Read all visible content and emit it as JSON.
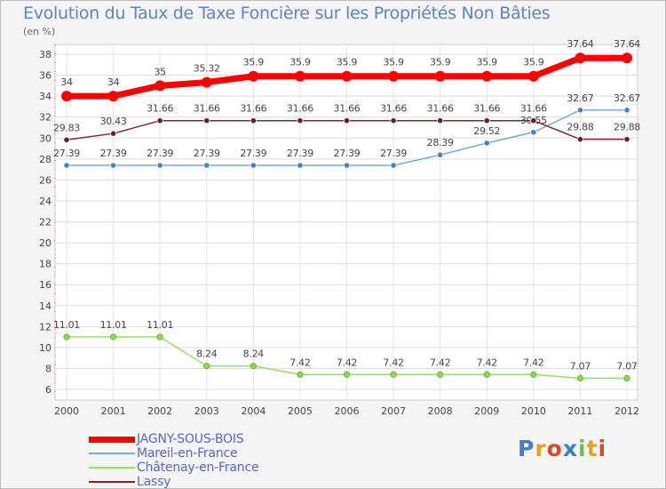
{
  "chart_data": {
    "type": "line",
    "title": "Evolution du Taux de Taxe Foncière sur les Propriétés Non Bâties",
    "ylabel": "(en %)",
    "xlabel": "",
    "categories": [
      "2000",
      "2001",
      "2002",
      "2003",
      "2004",
      "2005",
      "2006",
      "2007",
      "2008",
      "2009",
      "2010",
      "2011",
      "2012"
    ],
    "ylim": [
      6,
      38
    ],
    "yticks": [
      "6",
      "8",
      "10",
      "12",
      "14",
      "16",
      "18",
      "20",
      "22",
      "24",
      "26",
      "28",
      "30",
      "32",
      "34",
      "36",
      "38"
    ],
    "series": [
      {
        "name": "JAGNY-SOUS-BOIS",
        "color": "#ff0000",
        "values": [
          34,
          34,
          35,
          35.32,
          35.9,
          35.9,
          35.9,
          35.9,
          35.9,
          35.9,
          35.9,
          37.64,
          37.64
        ],
        "labels": [
          "34",
          "34",
          "35",
          "35.32",
          "35.9",
          "35.9",
          "35.9",
          "35.9",
          "35.9",
          "35.9",
          "35.9",
          "37.64",
          "37.64"
        ]
      },
      {
        "name": "Mareil-en-France",
        "color": "#7ba7d9",
        "values": [
          27.39,
          27.39,
          27.39,
          27.39,
          27.39,
          27.39,
          27.39,
          27.39,
          28.39,
          29.52,
          30.55,
          32.67,
          32.67
        ],
        "labels": [
          "27.39",
          "27.39",
          "27.39",
          "27.39",
          "27.39",
          "27.39",
          "27.39",
          "27.39",
          "28.39",
          "29.52",
          "30.55",
          "32.67",
          "32.67"
        ]
      },
      {
        "name": "Châtenay-en-France",
        "color": "#99dd66",
        "values": [
          11.01,
          11.01,
          11.01,
          8.24,
          8.24,
          7.42,
          7.42,
          7.42,
          7.42,
          7.42,
          7.42,
          7.07,
          7.07
        ],
        "labels": [
          "11.01",
          "11.01",
          "11.01",
          "8.24",
          "8.24",
          "7.42",
          "7.42",
          "7.42",
          "7.42",
          "7.42",
          "7.42",
          "7.07",
          "7.07"
        ]
      },
      {
        "name": "Lassy",
        "color": "#7a2a2a",
        "values": [
          29.83,
          30.43,
          31.66,
          31.66,
          31.66,
          31.66,
          31.66,
          31.66,
          31.66,
          31.66,
          31.66,
          29.88,
          29.88
        ],
        "labels": [
          "29.83",
          "30.43",
          "31.66",
          "31.66",
          "31.66",
          "31.66",
          "31.66",
          "31.66",
          "31.66",
          "31.66",
          "31.66",
          "29.88",
          "29.88"
        ]
      }
    ]
  },
  "logo": {
    "text": "Proxiti"
  }
}
